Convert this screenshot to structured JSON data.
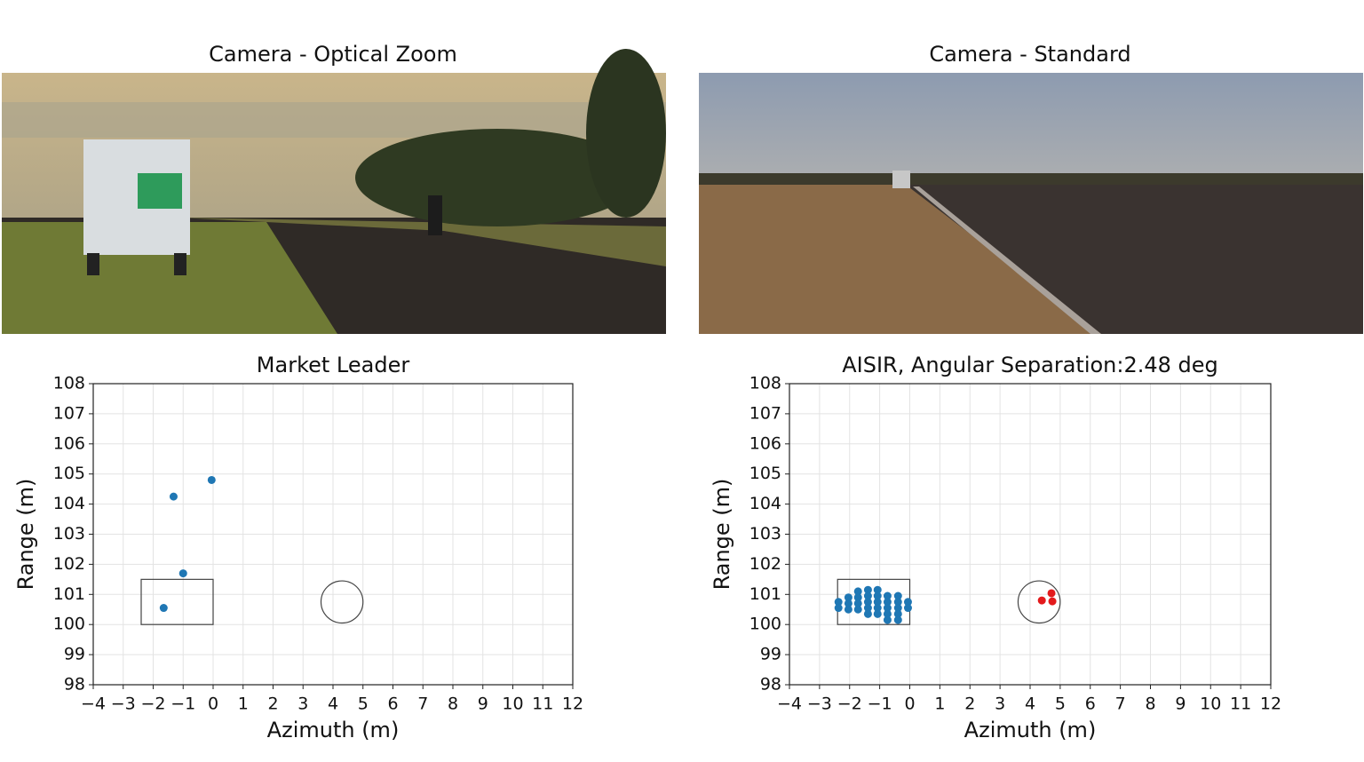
{
  "panels": [
    {
      "title": "Camera - Optical Zoom"
    },
    {
      "title": "Camera - Standard"
    }
  ],
  "chart_data": [
    {
      "type": "scatter",
      "title": "Market Leader",
      "xlabel": "Azimuth (m)",
      "ylabel": "Range (m)",
      "xlim": [
        -4,
        12
      ],
      "ylim": [
        98,
        108
      ],
      "xticks": [
        {
          "value": -4,
          "label": "−4"
        },
        {
          "value": -3,
          "label": "−3"
        },
        {
          "value": -2,
          "label": "−2"
        },
        {
          "value": -1,
          "label": "−1"
        },
        0,
        1,
        2,
        3,
        4,
        5,
        6,
        7,
        8,
        9,
        10,
        11,
        12
      ],
      "yticks": [
        98,
        99,
        100,
        101,
        102,
        103,
        104,
        105,
        106,
        107,
        108
      ],
      "grid": true,
      "box": {
        "x": [
          -2.4,
          0
        ],
        "y": [
          100,
          101.5
        ]
      },
      "circle": {
        "center": [
          4.3,
          100.75
        ],
        "radius": 0.7
      },
      "series": [
        {
          "color": "#1f77b4",
          "x": [
            -1.65,
            -1.32,
            -1.0,
            -0.05
          ],
          "values": [
            100.55,
            104.25,
            101.7,
            104.8
          ]
        }
      ]
    },
    {
      "type": "scatter",
      "title": "AISIR, Angular Separation:2.48 deg",
      "xlabel": "Azimuth (m)",
      "ylabel": "Range (m)",
      "xlim": [
        -4,
        12
      ],
      "ylim": [
        98,
        108
      ],
      "xticks": [
        {
          "value": -4,
          "label": "−4"
        },
        {
          "value": -3,
          "label": "−3"
        },
        {
          "value": -2,
          "label": "−2"
        },
        {
          "value": -1,
          "label": "−1"
        },
        0,
        1,
        2,
        3,
        4,
        5,
        6,
        7,
        8,
        9,
        10,
        11,
        12
      ],
      "yticks": [
        98,
        99,
        100,
        101,
        102,
        103,
        104,
        105,
        106,
        107,
        108
      ],
      "grid": true,
      "box": {
        "x": [
          -2.4,
          0
        ],
        "y": [
          100,
          101.5
        ]
      },
      "circle": {
        "center": [
          4.3,
          100.75
        ],
        "radius": 0.7
      },
      "series": [
        {
          "color": "#1f77b4",
          "x": [
            -2.37,
            -2.37,
            -2.04,
            -2.04,
            -2.04,
            -1.72,
            -1.72,
            -1.72,
            -1.72,
            -1.39,
            -1.39,
            -1.39,
            -1.39,
            -1.39,
            -1.07,
            -1.07,
            -1.07,
            -1.07,
            -1.07,
            -0.74,
            -0.74,
            -0.74,
            -0.74,
            -0.74,
            -0.39,
            -0.39,
            -0.39,
            -0.39,
            -0.39,
            -0.06,
            -0.06
          ],
          "values": [
            100.75,
            100.55,
            100.9,
            100.7,
            100.5,
            101.1,
            100.9,
            100.7,
            100.5,
            101.15,
            100.95,
            100.75,
            100.55,
            100.35,
            101.15,
            100.95,
            100.75,
            100.55,
            100.35,
            100.95,
            100.75,
            100.55,
            100.35,
            100.15,
            100.95,
            100.75,
            100.55,
            100.35,
            100.15,
            100.75,
            100.55
          ]
        },
        {
          "color": "#e31a1c",
          "x": [
            4.39,
            4.71,
            4.74
          ],
          "values": [
            100.8,
            101.04,
            100.77
          ]
        }
      ]
    }
  ]
}
